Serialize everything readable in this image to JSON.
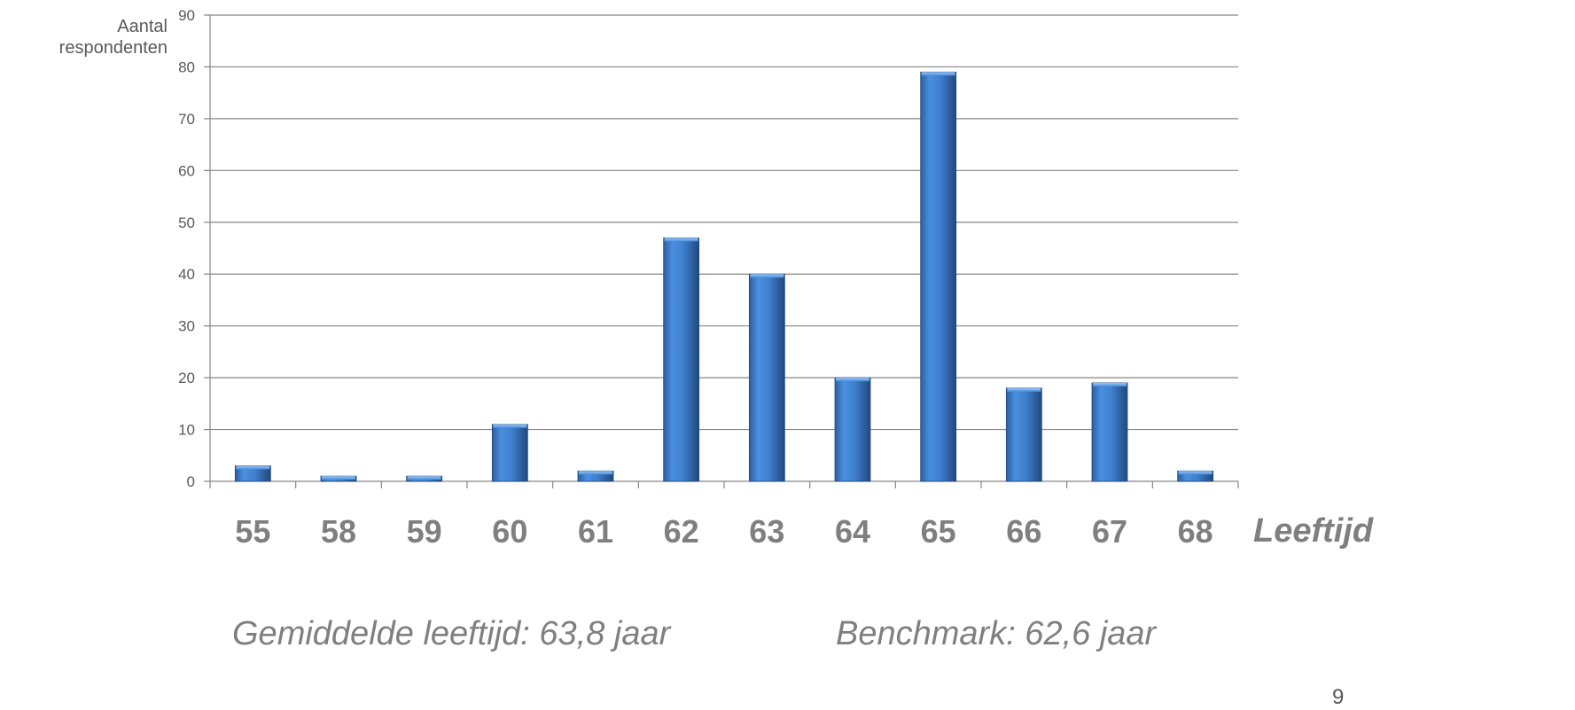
{
  "chart_data": {
    "type": "bar",
    "categories": [
      "55",
      "58",
      "59",
      "60",
      "61",
      "62",
      "63",
      "64",
      "65",
      "66",
      "67",
      "68"
    ],
    "values": [
      3,
      1,
      1,
      11,
      2,
      47,
      40,
      20,
      79,
      18,
      19,
      2
    ],
    "title": "",
    "xlabel": "Leeftijd",
    "ylabel": "Aantal\nrespondenten",
    "ylim": [
      0,
      90
    ],
    "yticks": [
      0,
      10,
      20,
      30,
      40,
      50,
      60,
      70,
      80,
      90
    ],
    "grid": true,
    "legend": "none",
    "bar_color": "#3f7fcf"
  },
  "notes": {
    "average": "Gemiddelde leeftijd: 63,8 jaar",
    "benchmark": "Benchmark: 62,6 jaar"
  },
  "page_number": "9"
}
